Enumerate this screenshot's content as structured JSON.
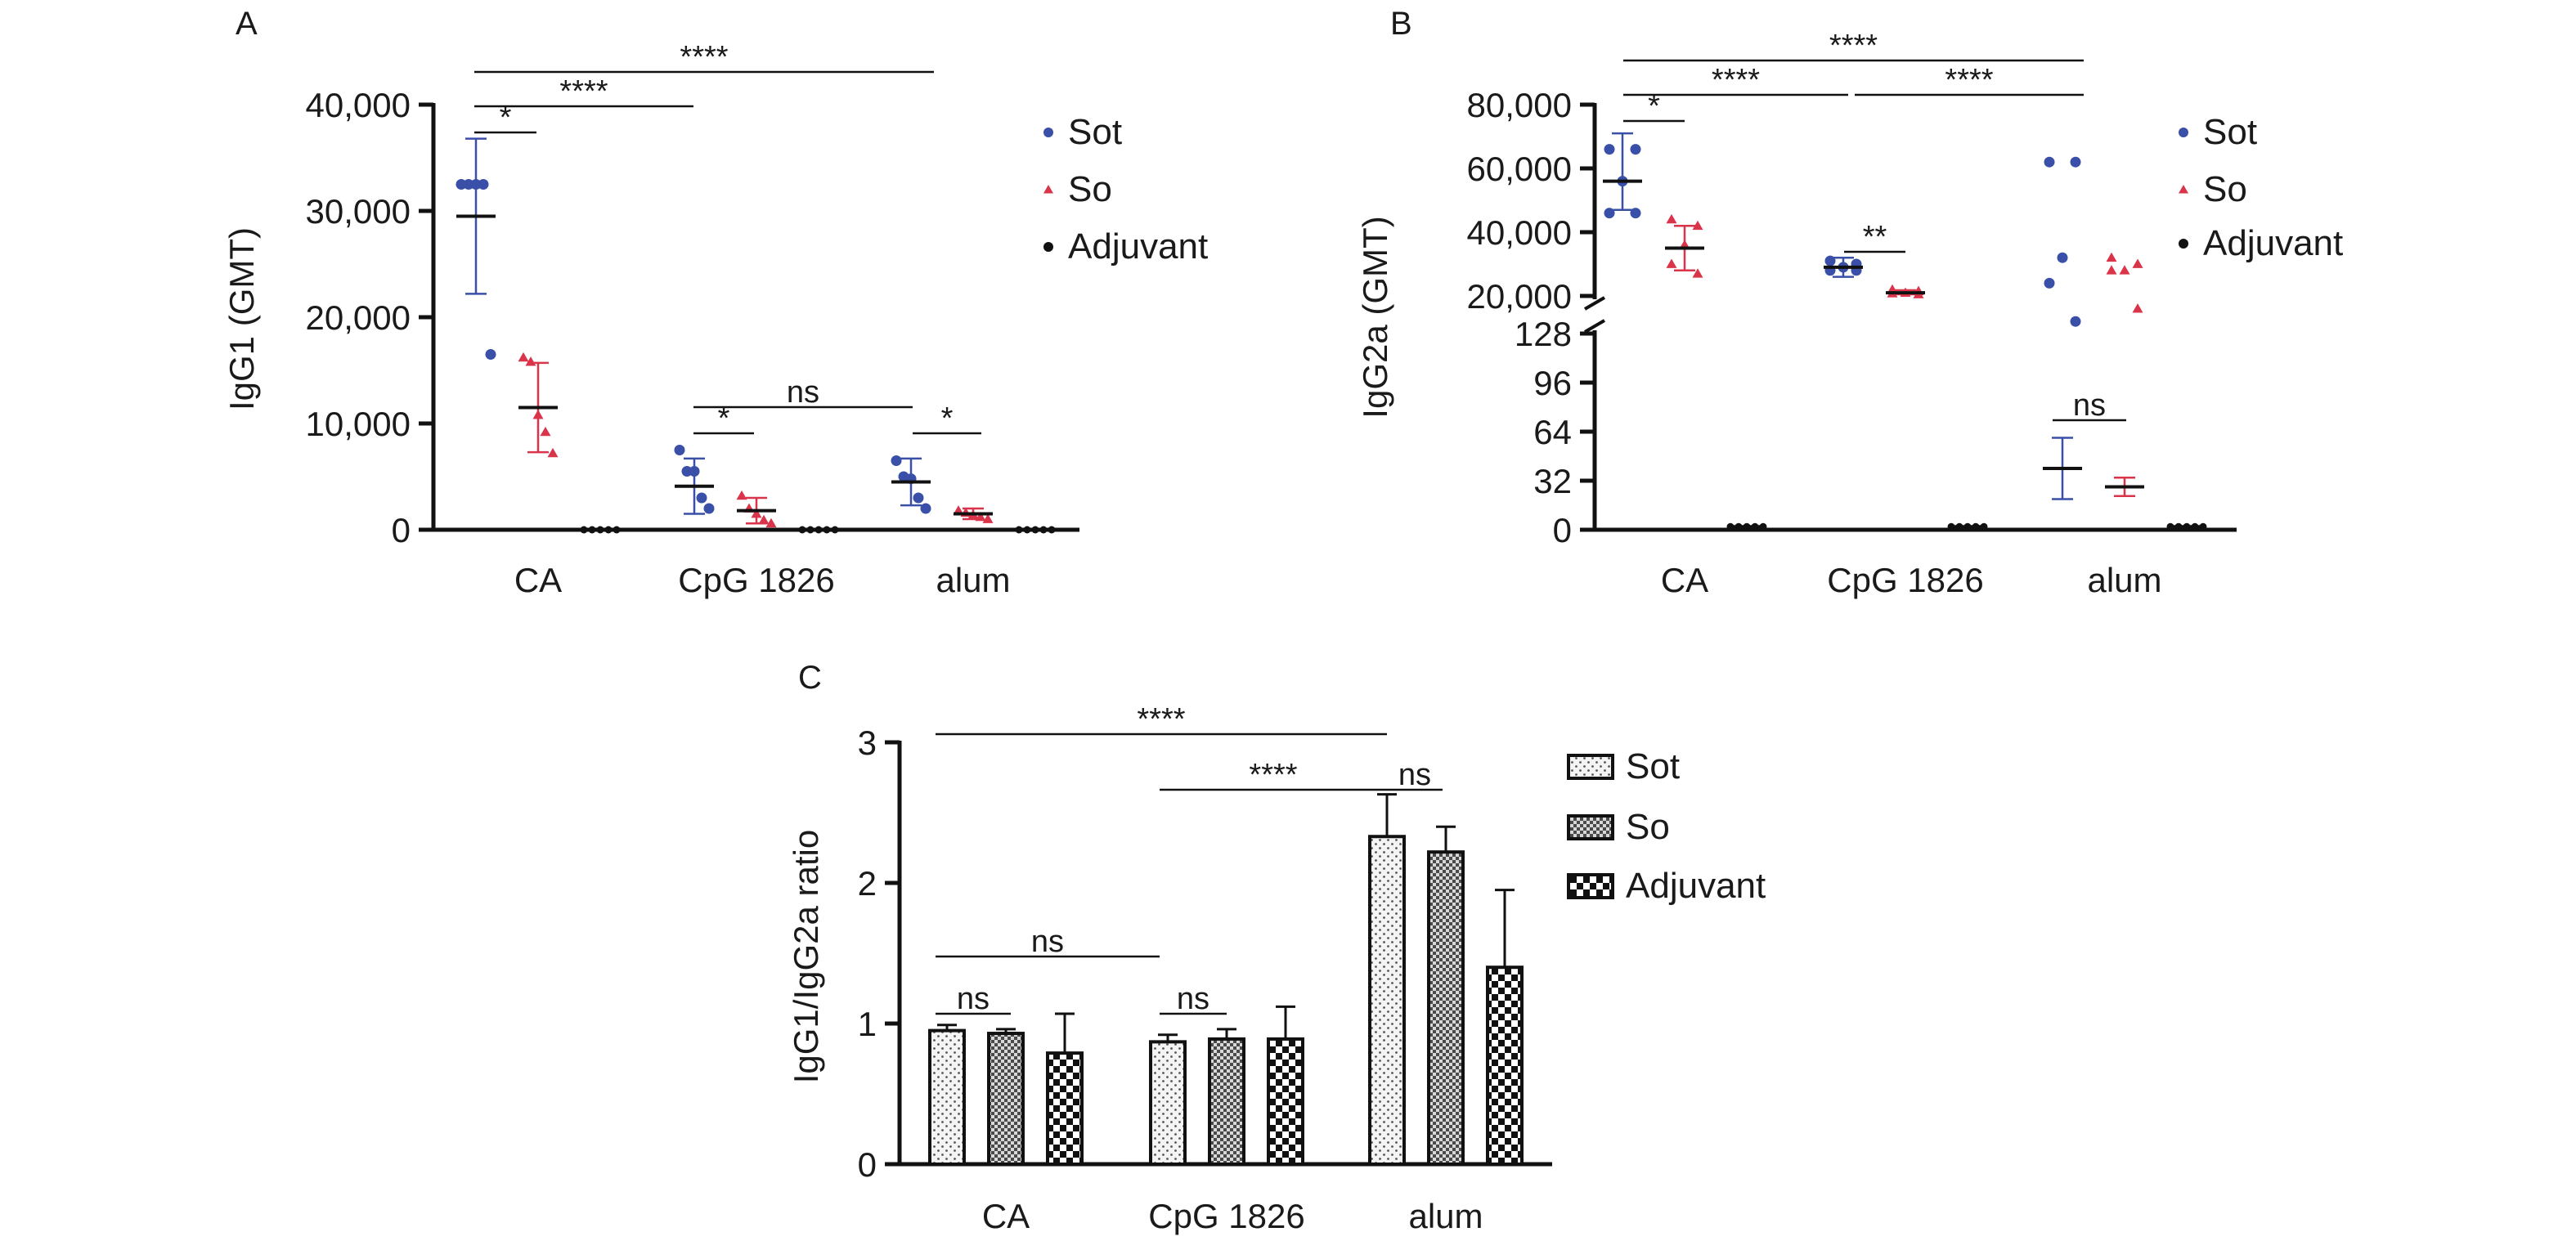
{
  "chart_data": [
    {
      "panel": "A",
      "type": "scatter",
      "ylabel": "IgG1 (GMT)",
      "categories": [
        "CA",
        "CpG 1826",
        "alum"
      ],
      "yticks": [
        "0",
        "10,000",
        "20,000",
        "30,000",
        "40,000"
      ],
      "ylim": [
        0,
        40000
      ],
      "legend": [
        "Sot",
        "So",
        "Adjuvant"
      ],
      "series": [
        {
          "name": "Sot",
          "color": "#3a4fa8",
          "marker": "circle",
          "points": [
            [
              32500,
              32500,
              32500,
              32500,
              16500
            ],
            [
              7500,
              5500,
              5500,
              3000,
              2000
            ],
            [
              6500,
              5000,
              4800,
              3000,
              2000
            ]
          ],
          "mean": [
            29500,
            4100,
            4500
          ],
          "sd": [
            [
              22200,
              36800
            ],
            [
              1500,
              6700
            ],
            [
              2300,
              6700
            ]
          ]
        },
        {
          "name": "So",
          "color": "#d9344a",
          "marker": "triangle",
          "points": [
            [
              16200,
              15800,
              10800,
              9200,
              7200
            ],
            [
              3200,
              2000,
              1500,
              900,
              600
            ],
            [
              1800,
              1600,
              1400,
              1200,
              1000
            ]
          ],
          "mean": [
            11500,
            1800,
            1500
          ],
          "sd": [
            [
              7300,
              15700
            ],
            [
              600,
              3000
            ],
            [
              1000,
              2000
            ]
          ]
        },
        {
          "name": "Adjuvant",
          "color": "#111111",
          "marker": "circle",
          "points": [
            [
              0,
              0,
              0,
              0,
              0
            ],
            [
              0,
              0,
              0,
              0,
              0
            ],
            [
              0,
              0,
              0,
              0,
              0
            ]
          ],
          "mean": [
            0,
            0,
            0
          ],
          "sd": [
            [
              0,
              0
            ],
            [
              0,
              0
            ],
            [
              0,
              0
            ]
          ]
        }
      ],
      "comparisons": [
        {
          "label": "*"
        },
        {
          "label": "****"
        },
        {
          "label": "****"
        },
        {
          "label": "ns"
        },
        {
          "label": "*"
        },
        {
          "label": "*"
        }
      ]
    },
    {
      "panel": "B",
      "type": "scatter",
      "ylabel": "IgG2a (GMT)",
      "categories": [
        "CA",
        "CpG 1826",
        "alum"
      ],
      "yticks_upper": [
        "20,000",
        "40,000",
        "60,000",
        "80,000"
      ],
      "yticks_lower": [
        "0",
        "32",
        "64",
        "96",
        "128"
      ],
      "ylim_lower": [
        0,
        128
      ],
      "ylim_upper": [
        20000,
        80000
      ],
      "legend": [
        "Sot",
        "So",
        "Adjuvant"
      ],
      "series": [
        {
          "name": "Sot",
          "color": "#3a4fa8",
          "marker": "circle",
          "points": [
            [
              66000,
              66000,
              56000,
              46000,
              46000
            ],
            [
              31000,
              30000,
              29000,
              28000,
              28000
            ],
            [
              62000,
              62000,
              32000,
              24000,
              12000
            ]
          ],
          "mean": [
            56000,
            29000,
            40
          ],
          "sd": [
            [
              47000,
              71000
            ],
            [
              26000,
              32000
            ],
            [
              20,
              60
            ]
          ]
        },
        {
          "name": "So",
          "color": "#d9344a",
          "marker": "triangle",
          "points": [
            [
              44000,
              42000,
              36000,
              30000,
              27000
            ],
            [
              22000,
              21500,
              21000,
              20800,
              20500
            ],
            [
              32000,
              30000,
              28000,
              28000,
              16000
            ]
          ],
          "mean": [
            35000,
            21000,
            28
          ],
          "sd": [
            [
              28000,
              42000
            ],
            [
              20500,
              21800
            ],
            [
              22,
              34
            ]
          ]
        },
        {
          "name": "Adjuvant",
          "color": "#111111",
          "marker": "circle",
          "points": [
            [
              2,
              2,
              2,
              2,
              2
            ],
            [
              2,
              2,
              2,
              2,
              2
            ],
            [
              2,
              2,
              2,
              2,
              2
            ]
          ],
          "mean": [
            2,
            2,
            2
          ],
          "sd": [
            [
              2,
              2
            ],
            [
              2,
              2
            ],
            [
              2,
              2
            ]
          ]
        }
      ],
      "comparisons": [
        {
          "label": "*"
        },
        {
          "label": "****"
        },
        {
          "label": "****"
        },
        {
          "label": "****"
        },
        {
          "label": "**"
        },
        {
          "label": "ns"
        }
      ]
    },
    {
      "panel": "C",
      "type": "bar",
      "ylabel": "IgG1/IgG2a ratio",
      "categories": [
        "CA",
        "CpG 1826",
        "alum"
      ],
      "yticks": [
        "0",
        "1",
        "2",
        "3"
      ],
      "ylim": [
        0,
        3
      ],
      "legend": [
        "Sot",
        "So",
        "Adjuvant"
      ],
      "series": [
        {
          "name": "Sot",
          "pattern": "dots",
          "values": [
            0.95,
            0.87,
            2.33
          ],
          "err": [
            0.04,
            0.05,
            0.3
          ]
        },
        {
          "name": "So",
          "pattern": "crosshatch",
          "values": [
            0.93,
            0.89,
            2.22
          ],
          "err": [
            0.03,
            0.07,
            0.18
          ]
        },
        {
          "name": "Adjuvant",
          "pattern": "checker",
          "values": [
            0.79,
            0.89,
            1.4
          ],
          "err": [
            0.28,
            0.23,
            0.55
          ]
        }
      ],
      "comparisons": [
        {
          "label": "****"
        },
        {
          "label": "****"
        },
        {
          "label": "ns"
        },
        {
          "label": "ns"
        },
        {
          "label": "ns"
        },
        {
          "label": "ns"
        }
      ]
    }
  ]
}
